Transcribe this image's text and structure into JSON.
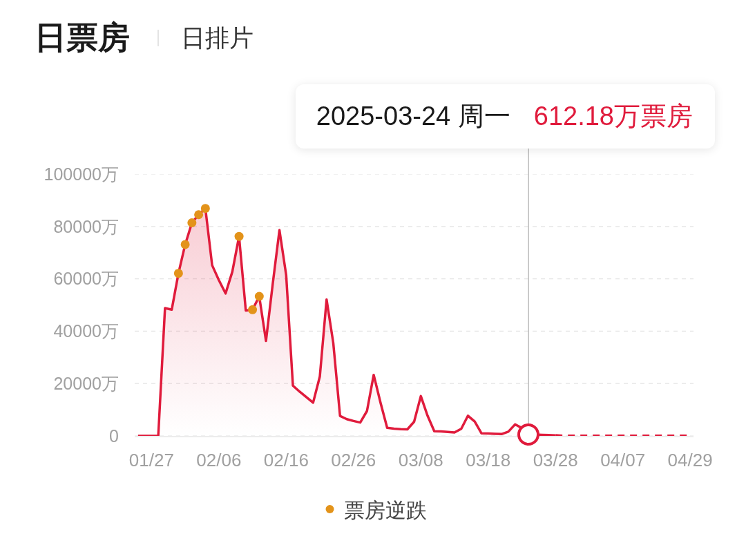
{
  "chart_data": {
    "type": "area",
    "title": "日票房",
    "subtitle": "日排片",
    "categories": [
      null,
      null,
      "01/27",
      null,
      null,
      null,
      null,
      null,
      null,
      null,
      null,
      null,
      "02/06",
      null,
      null,
      null,
      null,
      null,
      null,
      null,
      null,
      null,
      "02/16",
      null,
      null,
      null,
      null,
      null,
      null,
      null,
      null,
      null,
      "02/26",
      null,
      null,
      null,
      null,
      null,
      null,
      null,
      null,
      null,
      "03/08",
      null,
      null,
      null,
      null,
      null,
      null,
      null,
      null,
      null,
      "03/18",
      null,
      null,
      null,
      null,
      null,
      null,
      null,
      null,
      null,
      "03/28",
      null,
      null,
      null,
      null,
      null,
      null,
      null,
      null,
      null,
      "04/07",
      null,
      null,
      null,
      null,
      null,
      null,
      null,
      null,
      null,
      "04/29"
    ],
    "series": [
      {
        "color": "#e01b3c",
        "values": [
          0,
          0,
          0,
          0,
          48800,
          48200,
          62100,
          73100,
          81400,
          84500,
          86900,
          65200,
          59500,
          54400,
          62700,
          76200,
          47900,
          48200,
          53300,
          36300,
          58000,
          78600,
          61400,
          19200,
          16900,
          14800,
          12700,
          22700,
          52100,
          35400,
          7600,
          6400,
          5700,
          5100,
          9500,
          23300,
          12800,
          3100,
          2800,
          2600,
          2500,
          5400,
          15200,
          7700,
          1800,
          1700,
          1500,
          1300,
          2700,
          7700,
          5500,
          1000,
          900,
          800,
          700,
          1600,
          4400,
          3000,
          612.18,
          500,
          400,
          300,
          200,
          null,
          null,
          null,
          null,
          null,
          null,
          null,
          null,
          null,
          null,
          null,
          null,
          null,
          null,
          null,
          null,
          null,
          null,
          null,
          null
        ]
      },
      {
        "type": "line",
        "line_style": "dashed",
        "color": "#e01b3c",
        "values": [
          null,
          null,
          null,
          null,
          null,
          null,
          null,
          null,
          null,
          null,
          null,
          null,
          null,
          null,
          null,
          null,
          null,
          null,
          null,
          null,
          null,
          null,
          null,
          null,
          null,
          null,
          null,
          null,
          null,
          null,
          null,
          null,
          null,
          null,
          null,
          null,
          null,
          null,
          null,
          null,
          null,
          null,
          null,
          null,
          null,
          null,
          null,
          null,
          null,
          null,
          null,
          null,
          null,
          null,
          null,
          null,
          null,
          null,
          null,
          null,
          null,
          null,
          200,
          0,
          0,
          0,
          0,
          0,
          0,
          0,
          0,
          0,
          0,
          0,
          0,
          0,
          0,
          0,
          0,
          0,
          0,
          0,
          0
        ]
      },
      {
        "type": "scatter",
        "name": "票房逆跌",
        "marker": "circle",
        "color": "#e3931a",
        "values": [
          null,
          null,
          null,
          null,
          null,
          null,
          62100,
          73100,
          81400,
          84500,
          86900,
          null,
          null,
          null,
          null,
          76200,
          null,
          48200,
          53300,
          null,
          null,
          null,
          null,
          null,
          null,
          null,
          null,
          null,
          null,
          null,
          null,
          null,
          null,
          null,
          null,
          null,
          null,
          null,
          null,
          null,
          null,
          null,
          null,
          null,
          null,
          null,
          null,
          null,
          null,
          null,
          null,
          null,
          null,
          null,
          null,
          null,
          null,
          null,
          null,
          null,
          null,
          null,
          null,
          null,
          null,
          null,
          null,
          null,
          null,
          null,
          null,
          null,
          null,
          null,
          null,
          null,
          null,
          null,
          null,
          null,
          null,
          null,
          null
        ]
      }
    ],
    "ylim": [
      0,
      100000
    ],
    "yticks": [
      0,
      {
        "value": 20000,
        "label": "20000万"
      },
      {
        "value": 40000,
        "label": "40000万"
      },
      {
        "value": 60000,
        "label": "60000万"
      },
      {
        "value": 80000,
        "label": "80000万"
      },
      {
        "value": 100000,
        "label": "100000万"
      }
    ],
    "grid": "y",
    "legend": "bottom",
    "annotations": [
      "2025-03-24 周一",
      "612.18万票房"
    ]
  }
}
